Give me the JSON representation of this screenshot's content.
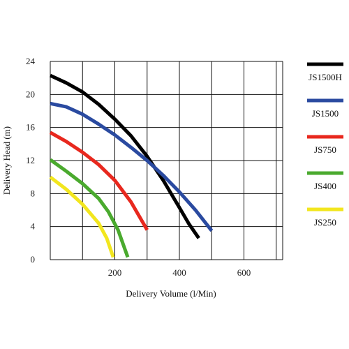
{
  "chart_data": {
    "type": "line",
    "title": "",
    "xlabel": "Delivery Volume (l/Min)",
    "ylabel": "Delivery Head (m)",
    "xlim": [
      0,
      720
    ],
    "ylim": [
      0,
      24
    ],
    "x_ticks": [
      200,
      400,
      600
    ],
    "y_ticks": [
      0,
      4,
      8,
      12,
      16,
      20,
      24
    ],
    "x_tick_labels": [
      "200",
      "400",
      "600"
    ],
    "y_tick_labels": [
      "0",
      "4",
      "8",
      "12",
      "16",
      "20",
      "24"
    ],
    "grid": true,
    "legend_position": "right",
    "series": [
      {
        "name": "JS1500H",
        "color": "#000000",
        "points": [
          [
            0,
            22.3
          ],
          [
            50,
            21.4
          ],
          [
            100,
            20.3
          ],
          [
            150,
            18.8
          ],
          [
            200,
            17.0
          ],
          [
            250,
            15.0
          ],
          [
            300,
            12.5
          ],
          [
            350,
            9.6
          ],
          [
            400,
            6.3
          ],
          [
            430,
            4.3
          ],
          [
            460,
            2.6
          ]
        ]
      },
      {
        "name": "JS1500",
        "color": "#2a4aa0",
        "points": [
          [
            0,
            18.9
          ],
          [
            50,
            18.5
          ],
          [
            100,
            17.6
          ],
          [
            150,
            16.4
          ],
          [
            200,
            15.1
          ],
          [
            250,
            13.6
          ],
          [
            300,
            12.0
          ],
          [
            350,
            10.2
          ],
          [
            400,
            8.2
          ],
          [
            450,
            6.0
          ],
          [
            500,
            3.5
          ]
        ]
      },
      {
        "name": "JS750",
        "color": "#e8281e",
        "points": [
          [
            0,
            15.4
          ],
          [
            50,
            14.3
          ],
          [
            100,
            13.0
          ],
          [
            150,
            11.5
          ],
          [
            200,
            9.6
          ],
          [
            250,
            7.0
          ],
          [
            300,
            3.6
          ]
        ]
      },
      {
        "name": "JS400",
        "color": "#4aaa2e",
        "points": [
          [
            0,
            12.1
          ],
          [
            50,
            10.7
          ],
          [
            100,
            9.2
          ],
          [
            150,
            7.4
          ],
          [
            180,
            5.8
          ],
          [
            210,
            3.6
          ],
          [
            240,
            0.3
          ]
        ]
      },
      {
        "name": "JS250",
        "color": "#f2e61e",
        "points": [
          [
            0,
            10.0
          ],
          [
            50,
            8.5
          ],
          [
            100,
            6.7
          ],
          [
            150,
            4.4
          ],
          [
            175,
            2.6
          ],
          [
            195,
            0.3
          ]
        ]
      }
    ]
  }
}
